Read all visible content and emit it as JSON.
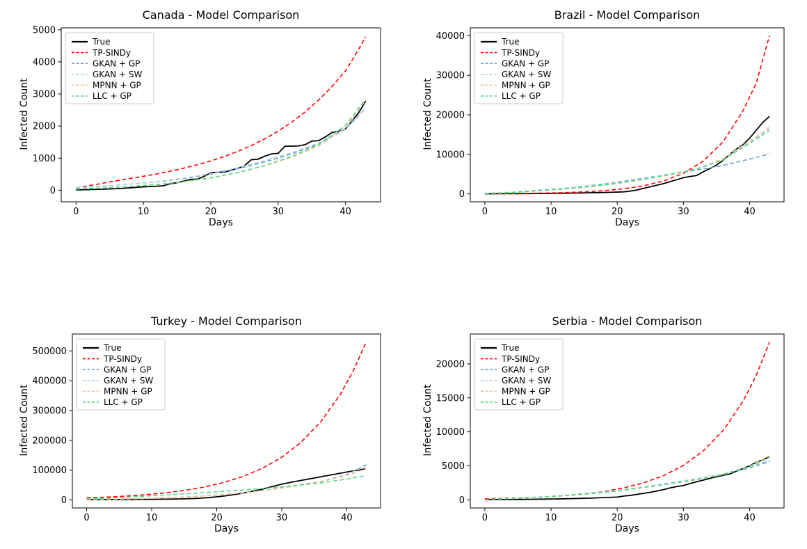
{
  "figure": {
    "background": "#ffffff",
    "rows": 2,
    "cols": 2
  },
  "chart_data": [
    {
      "type": "line",
      "title": "Canada - Model Comparison",
      "xlabel": "Days",
      "ylabel": "Infected Count",
      "xlim": [
        -2.2,
        45.2
      ],
      "ylim": [
        -360,
        5060
      ],
      "xticks": [
        0,
        10,
        20,
        30,
        40
      ],
      "yticks": [
        0,
        1000,
        2000,
        3000,
        4000,
        5000
      ],
      "grid": false,
      "legend_position": "upper left",
      "series": [
        {
          "name": "True",
          "color": "#000000",
          "style": "solid",
          "width": 1.8,
          "y": [
            10,
            15,
            20,
            25,
            30,
            40,
            50,
            60,
            75,
            90,
            105,
            115,
            125,
            140,
            205,
            235,
            285,
            340,
            345,
            430,
            545,
            560,
            565,
            620,
            680,
            760,
            950,
            965,
            1060,
            1130,
            1150,
            1370,
            1375,
            1380,
            1420,
            1530,
            1545,
            1660,
            1800,
            1840,
            1915,
            2160,
            2430,
            2780
          ]
        },
        {
          "name": "TP-SINDy",
          "color": "#ff0000",
          "style": "dashed",
          "width": 1.6,
          "x": [
            0,
            2,
            4,
            6,
            8,
            10,
            12,
            14,
            16,
            18,
            20,
            22,
            24,
            26,
            28,
            30,
            32,
            34,
            36,
            38,
            40,
            41,
            42,
            43
          ],
          "y": [
            70,
            145,
            220,
            295,
            365,
            435,
            510,
            595,
            690,
            795,
            910,
            1050,
            1210,
            1390,
            1600,
            1840,
            2120,
            2440,
            2810,
            3230,
            3720,
            4060,
            4410,
            4780
          ]
        },
        {
          "name": "GKAN + GP",
          "color": "#5E9CD3",
          "style": "dashed",
          "width": 1.5,
          "x": [
            0,
            4,
            8,
            12,
            16,
            20,
            24,
            28,
            32,
            36,
            40,
            43
          ],
          "y": [
            80,
            130,
            190,
            265,
            360,
            500,
            670,
            880,
            1130,
            1440,
            1900,
            2550
          ]
        },
        {
          "name": "GKAN + SW",
          "color": "#AECFE8",
          "style": "dashed",
          "width": 1.5,
          "x": [
            0,
            4,
            8,
            12,
            16,
            20,
            24,
            28,
            32,
            36,
            40,
            43
          ],
          "y": [
            70,
            125,
            190,
            270,
            375,
            520,
            700,
            920,
            1170,
            1470,
            1930,
            2560
          ]
        },
        {
          "name": "MPNN + GP",
          "color": "#F8BD8B",
          "style": "dashed",
          "width": 1.5,
          "x": [
            0,
            4,
            8,
            12,
            16,
            20,
            24,
            28,
            32,
            36,
            40,
            43
          ],
          "y": [
            40,
            75,
            120,
            180,
            270,
            390,
            550,
            760,
            1030,
            1380,
            1950,
            2800
          ]
        },
        {
          "name": "LLC + GP",
          "color": "#4BD97F",
          "style": "dashed",
          "width": 1.5,
          "x": [
            0,
            4,
            8,
            12,
            16,
            20,
            24,
            28,
            32,
            36,
            40,
            43
          ],
          "y": [
            35,
            70,
            115,
            175,
            265,
            385,
            550,
            770,
            1050,
            1420,
            2020,
            2850
          ]
        }
      ]
    },
    {
      "type": "line",
      "title": "Brazil - Model Comparison",
      "xlabel": "Days",
      "ylabel": "Infected Count",
      "xlim": [
        -2.2,
        45.2
      ],
      "ylim": [
        -2000,
        42000
      ],
      "xticks": [
        0,
        10,
        20,
        30,
        40
      ],
      "yticks": [
        0,
        10000,
        20000,
        30000,
        40000
      ],
      "grid": false,
      "legend_position": "upper left",
      "series": [
        {
          "name": "True",
          "color": "#000000",
          "style": "solid",
          "width": 1.8,
          "y": [
            30,
            35,
            40,
            45,
            50,
            60,
            70,
            80,
            95,
            110,
            130,
            150,
            170,
            195,
            220,
            250,
            285,
            320,
            360,
            400,
            450,
            520,
            700,
            1000,
            1400,
            1800,
            2200,
            2600,
            3100,
            3600,
            4100,
            4400,
            4650,
            5600,
            6400,
            7300,
            8500,
            10000,
            11300,
            12400,
            14100,
            16100,
            18100,
            19600
          ]
        },
        {
          "name": "TP-SINDy",
          "color": "#ff0000",
          "style": "dashed",
          "width": 1.6,
          "x": [
            0,
            3,
            6,
            9,
            12,
            15,
            18,
            21,
            24,
            27,
            30,
            33,
            36,
            39,
            41,
            43
          ],
          "y": [
            50,
            80,
            130,
            200,
            320,
            510,
            810,
            1290,
            2050,
            3270,
            5200,
            8280,
            13200,
            21000,
            28000,
            40000
          ]
        },
        {
          "name": "GKAN + GP",
          "color": "#5E9CD3",
          "style": "dashed",
          "width": 1.5,
          "x": [
            0,
            4,
            8,
            12,
            16,
            20,
            24,
            28,
            32,
            36,
            40,
            43
          ],
          "y": [
            100,
            400,
            900,
            1400,
            2100,
            3000,
            4000,
            5000,
            6000,
            7200,
            8800,
            10100
          ]
        },
        {
          "name": "GKAN + SW",
          "color": "#AECFE8",
          "style": "dashed",
          "width": 1.5,
          "x": [
            0,
            4,
            8,
            12,
            16,
            20,
            24,
            28,
            32,
            36,
            40,
            43
          ],
          "y": [
            90,
            380,
            850,
            1350,
            2000,
            2900,
            3900,
            5000,
            6400,
            8800,
            13000,
            16400
          ]
        },
        {
          "name": "MPNN + GP",
          "color": "#F8BD8B",
          "style": "dashed",
          "width": 1.5,
          "x": [
            0,
            4,
            8,
            12,
            16,
            20,
            24,
            28,
            32,
            36,
            40,
            43
          ],
          "y": [
            80,
            330,
            750,
            1200,
            1800,
            2600,
            3600,
            4800,
            6300,
            8900,
            13400,
            16800
          ]
        },
        {
          "name": "LLC + GP",
          "color": "#4BD97F",
          "style": "dashed",
          "width": 1.5,
          "x": [
            0,
            4,
            8,
            12,
            16,
            20,
            24,
            28,
            32,
            36,
            40,
            43
          ],
          "y": [
            80,
            350,
            780,
            1250,
            1900,
            2700,
            3700,
            4900,
            6200,
            8600,
            12800,
            16000
          ]
        }
      ]
    },
    {
      "type": "line",
      "title": "Turkey - Model Comparison",
      "xlabel": "Days",
      "ylabel": "Infected Count",
      "xlim": [
        -2.2,
        45.2
      ],
      "ylim": [
        -27000,
        557000
      ],
      "xticks": [
        0,
        10,
        20,
        30,
        40
      ],
      "yticks": [
        0,
        100000,
        200000,
        300000,
        400000,
        500000
      ],
      "grid": false,
      "legend_position": "upper left",
      "series": [
        {
          "name": "True",
          "color": "#000000",
          "style": "solid",
          "width": 1.8,
          "y": [
            1000,
            1050,
            1100,
            1150,
            1200,
            1300,
            1400,
            1500,
            1650,
            1800,
            2000,
            2200,
            2400,
            2700,
            3100,
            3600,
            4300,
            5200,
            6500,
            8200,
            10300,
            12800,
            15700,
            19000,
            22700,
            26800,
            31300,
            36200,
            41500,
            47200,
            53000,
            57500,
            61500,
            65500,
            69500,
            73500,
            77500,
            81500,
            85500,
            89500,
            93500,
            97500,
            101000,
            105000
          ]
        },
        {
          "name": "TP-SINDy",
          "color": "#ff0000",
          "style": "dashed",
          "width": 1.6,
          "x": [
            0,
            3,
            6,
            9,
            12,
            15,
            18,
            21,
            24,
            27,
            30,
            33,
            36,
            39,
            41,
            43
          ],
          "y": [
            7000,
            9470,
            12800,
            17300,
            23400,
            31700,
            42800,
            57900,
            78300,
            106000,
            143000,
            194000,
            262000,
            354000,
            433000,
            530000
          ]
        },
        {
          "name": "GKAN + GP",
          "color": "#5E9CD3",
          "style": "dashed",
          "width": 1.5,
          "x": [
            0,
            4,
            8,
            12,
            16,
            20,
            24,
            28,
            32,
            36,
            40,
            43
          ],
          "y": [
            1500,
            2600,
            4300,
            7000,
            11000,
            16500,
            24000,
            34000,
            47000,
            62000,
            85000,
            118000
          ]
        },
        {
          "name": "GKAN + SW",
          "color": "#AECFE8",
          "style": "dashed",
          "width": 1.5,
          "x": [
            0,
            4,
            8,
            12,
            16,
            20,
            24,
            28,
            32,
            36,
            40,
            43
          ],
          "y": [
            1400,
            2500,
            4200,
            6800,
            10700,
            16000,
            23500,
            33500,
            46500,
            61500,
            84000,
            115000
          ]
        },
        {
          "name": "MPNN + GP",
          "color": "#F8BD8B",
          "style": "dashed",
          "width": 1.5,
          "x": [
            0,
            4,
            8,
            12,
            16,
            20,
            24,
            28,
            32,
            36,
            40,
            43
          ],
          "y": [
            1300,
            2400,
            4100,
            6700,
            10500,
            15800,
            23200,
            33200,
            46000,
            61000,
            82000,
            105000
          ]
        },
        {
          "name": "LLC + GP",
          "color": "#4BD97F",
          "style": "dashed",
          "width": 1.5,
          "x": [
            0,
            4,
            8,
            12,
            16,
            20,
            24,
            28,
            32,
            36,
            40,
            43
          ],
          "y": [
            2500,
            6500,
            11500,
            16500,
            21500,
            27000,
            33000,
            40000,
            48000,
            57000,
            70000,
            82000
          ]
        }
      ]
    },
    {
      "type": "line",
      "title": "Serbia - Model Comparison",
      "xlabel": "Days",
      "ylabel": "Infected Count",
      "xlim": [
        -2.2,
        45.2
      ],
      "ylim": [
        -1200,
        24400
      ],
      "xticks": [
        0,
        10,
        20,
        30,
        40
      ],
      "yticks": [
        0,
        5000,
        10000,
        15000,
        20000
      ],
      "grid": false,
      "legend_position": "upper left",
      "series": [
        {
          "name": "True",
          "color": "#000000",
          "style": "solid",
          "width": 1.8,
          "y": [
            20,
            25,
            30,
            35,
            40,
            50,
            60,
            70,
            85,
            100,
            115,
            130,
            150,
            170,
            195,
            220,
            250,
            285,
            320,
            360,
            400,
            550,
            650,
            800,
            950,
            1100,
            1300,
            1500,
            1750,
            1950,
            2100,
            2400,
            2650,
            2900,
            3150,
            3400,
            3600,
            3800,
            4200,
            4600,
            5000,
            5500,
            5900,
            6300
          ]
        },
        {
          "name": "TP-SINDy",
          "color": "#ff0000",
          "style": "dashed",
          "width": 1.6,
          "x": [
            0,
            3,
            6,
            9,
            12,
            15,
            18,
            21,
            24,
            27,
            30,
            33,
            36,
            39,
            41,
            43
          ],
          "y": [
            150,
            215,
            305,
            430,
            610,
            870,
            1240,
            1760,
            2500,
            3560,
            5060,
            7200,
            10200,
            14500,
            18300,
            23200
          ]
        },
        {
          "name": "GKAN + GP",
          "color": "#5E9CD3",
          "style": "dashed",
          "width": 1.5,
          "x": [
            0,
            4,
            8,
            12,
            16,
            20,
            24,
            28,
            32,
            36,
            40,
            43
          ],
          "y": [
            60,
            190,
            380,
            620,
            950,
            1350,
            1850,
            2400,
            3000,
            3700,
            4700,
            5600
          ]
        },
        {
          "name": "GKAN + SW",
          "color": "#AECFE8",
          "style": "dashed",
          "width": 1.5,
          "x": [
            0,
            4,
            8,
            12,
            16,
            20,
            24,
            28,
            32,
            36,
            40,
            43
          ],
          "y": [
            60,
            200,
            400,
            650,
            1000,
            1400,
            1900,
            2500,
            3100,
            3800,
            4850,
            5800
          ]
        },
        {
          "name": "MPNN + GP",
          "color": "#F8BD8B",
          "style": "dashed",
          "width": 1.5,
          "x": [
            0,
            4,
            8,
            12,
            16,
            20,
            24,
            28,
            32,
            36,
            40,
            43
          ],
          "y": [
            50,
            170,
            350,
            580,
            900,
            1280,
            1800,
            2350,
            2950,
            3700,
            4950,
            6500
          ]
        },
        {
          "name": "LLC + GP",
          "color": "#4BD97F",
          "style": "dashed",
          "width": 1.5,
          "x": [
            0,
            4,
            8,
            12,
            16,
            20,
            24,
            28,
            32,
            36,
            40,
            43
          ],
          "y": [
            50,
            180,
            360,
            600,
            920,
            1300,
            1820,
            2380,
            2980,
            3750,
            4900,
            6250
          ]
        }
      ]
    }
  ]
}
